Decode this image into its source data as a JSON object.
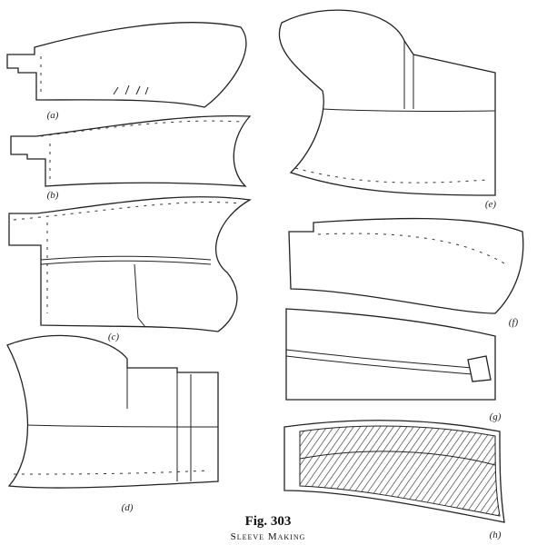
{
  "figure": {
    "panels": [
      {
        "label": "(a)"
      },
      {
        "label": "(b)"
      },
      {
        "label": "(c)"
      },
      {
        "label": "(d)"
      },
      {
        "label": "(e)"
      },
      {
        "label": "(f)"
      },
      {
        "label": "(g)"
      },
      {
        "label": "(h)"
      }
    ],
    "caption": {
      "number": "Fig. 303",
      "title": "Sleeve Making"
    }
  }
}
